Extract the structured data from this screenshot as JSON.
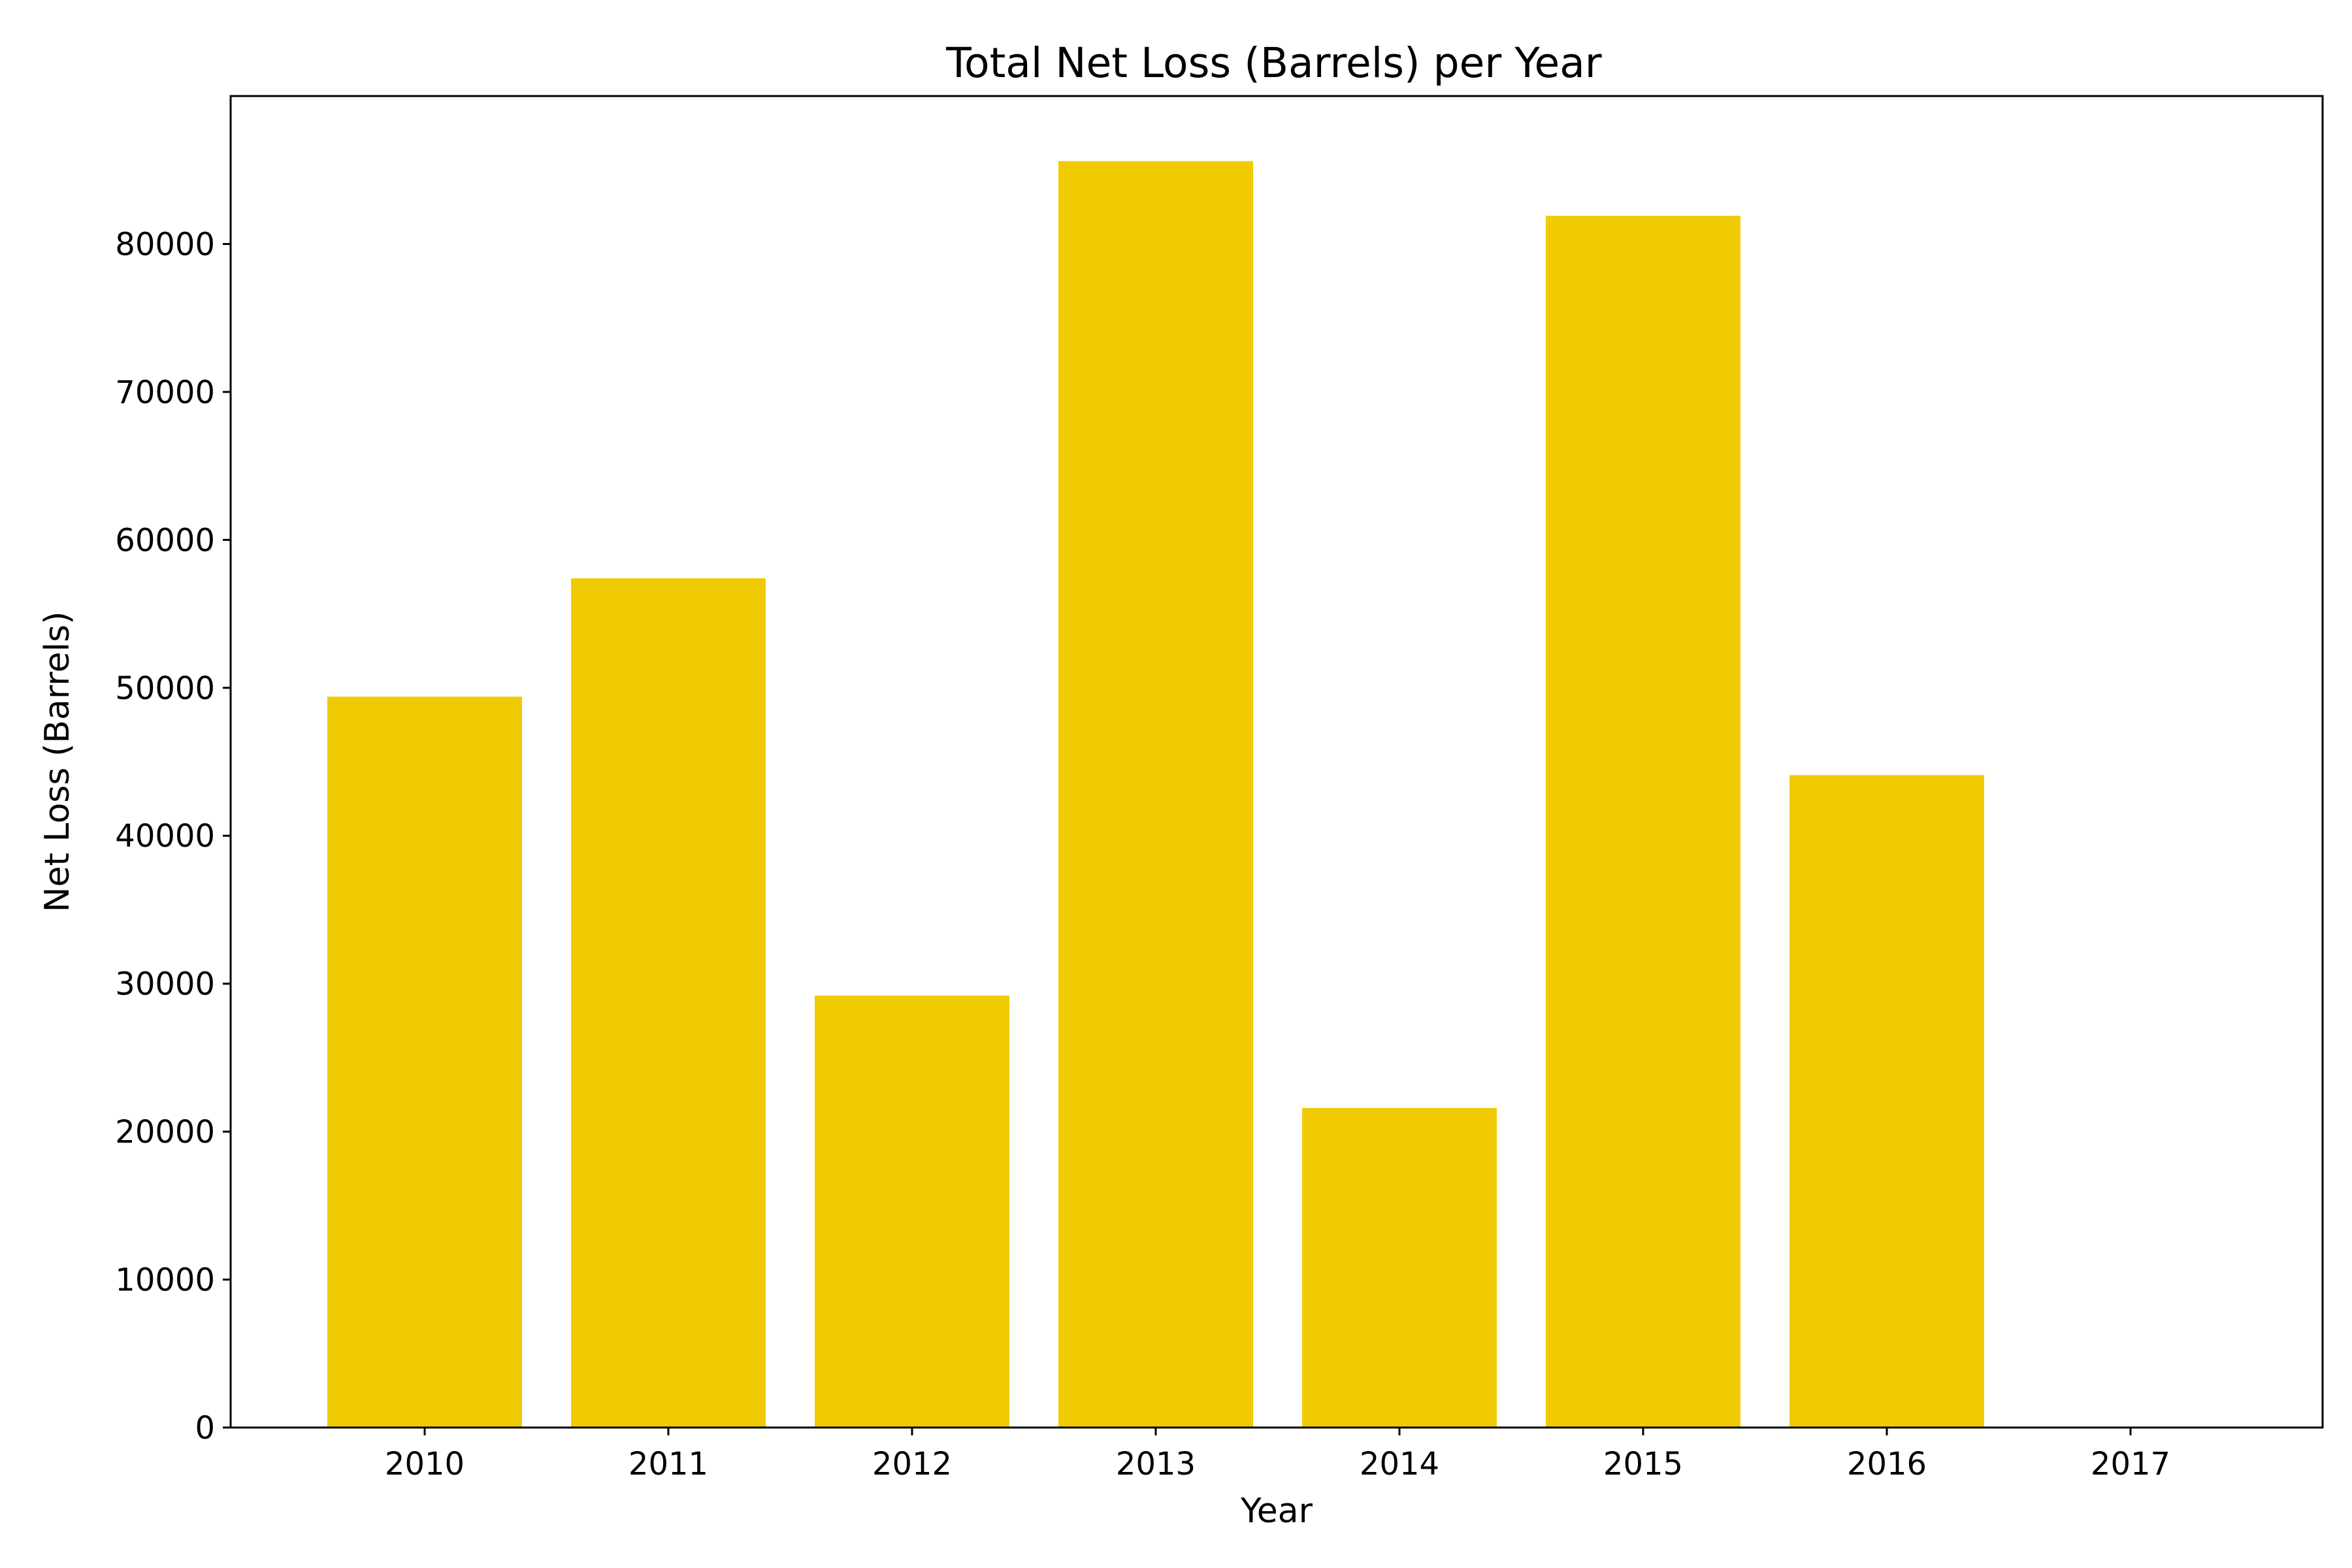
{
  "chart_data": {
    "type": "bar",
    "title": "Total Net Loss (Barrels) per Year",
    "xlabel": "Year",
    "ylabel": "Net Loss (Barrels)",
    "categories": [
      "2010",
      "2011",
      "2012",
      "2013",
      "2014",
      "2015",
      "2016",
      "2017"
    ],
    "values": [
      49400,
      57400,
      29200,
      85600,
      21600,
      81900,
      44100,
      0
    ],
    "ylim": [
      0,
      90000
    ],
    "yticks": [
      0,
      10000,
      20000,
      30000,
      40000,
      50000,
      60000,
      70000,
      80000
    ],
    "bar_color": "#f0cb04",
    "grid": false,
    "legend": "none"
  }
}
